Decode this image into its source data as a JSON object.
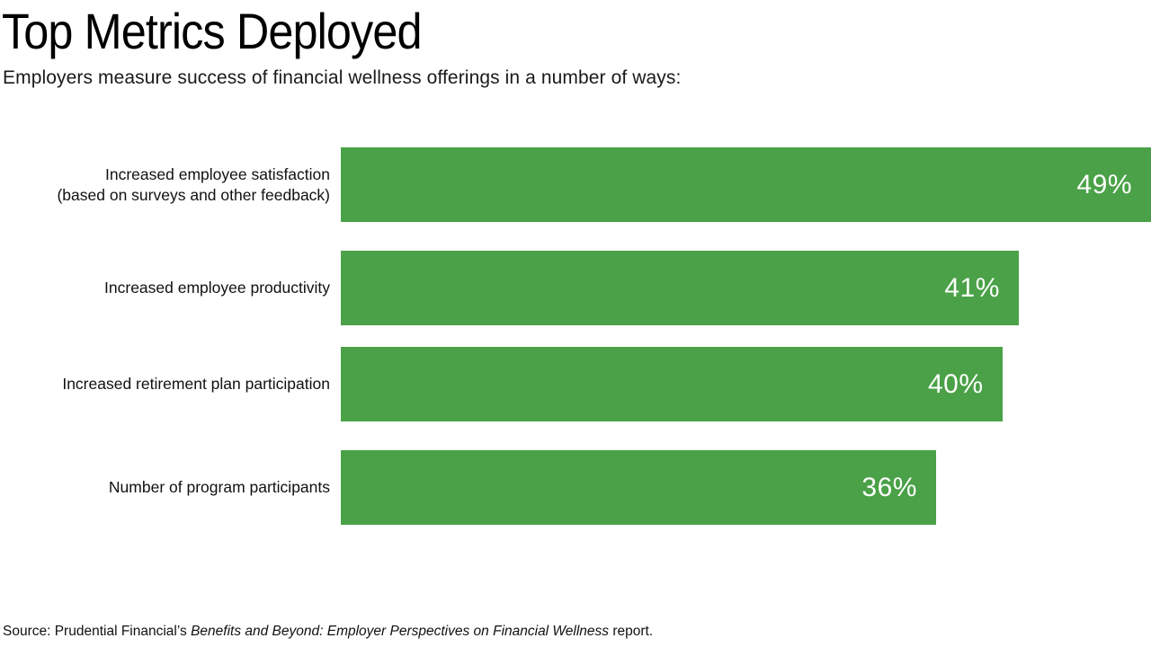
{
  "title": "Top Metrics Deployed",
  "subtitle": "Employers measure success of financial wellness offerings in a number of ways:",
  "source": {
    "prefix": "Source: Prudential Financial’s ",
    "italic": "Benefits and Beyond: Employer Perspectives on Financial Wellness",
    "suffix": " report."
  },
  "colors": {
    "bar_green": "#4aa147",
    "value_text": "#ffffff",
    "heading_text": "#000000"
  },
  "chart_data": {
    "type": "bar",
    "orientation": "horizontal",
    "title": "Top Metrics Deployed",
    "subtitle": "Employers measure success of financial wellness offerings in a number of ways:",
    "categories": [
      "Increased employee satisfaction (based on surveys and other feedback)",
      "Increased employee productivity",
      "Increased retirement plan participation",
      "Number of program participants"
    ],
    "values": [
      49,
      41,
      40,
      36
    ],
    "value_labels": [
      "49%",
      "41%",
      "40%",
      "36%"
    ],
    "xlabel": "",
    "ylabel": "",
    "xlim": [
      0,
      49
    ],
    "grid": false,
    "legend": false,
    "bar_color": "#4aa147"
  },
  "rows": [
    {
      "label_lines": [
        "Increased employee satisfaction",
        "(based on surveys and other feedback)"
      ],
      "value": 49,
      "value_label": "49%"
    },
    {
      "label_lines": [
        "Increased employee productivity"
      ],
      "value": 41,
      "value_label": "41%"
    },
    {
      "label_lines": [
        "Increased retirement plan participation"
      ],
      "value": 40,
      "value_label": "40%"
    },
    {
      "label_lines": [
        "Number of program participants"
      ],
      "value": 36,
      "value_label": "36%"
    }
  ]
}
